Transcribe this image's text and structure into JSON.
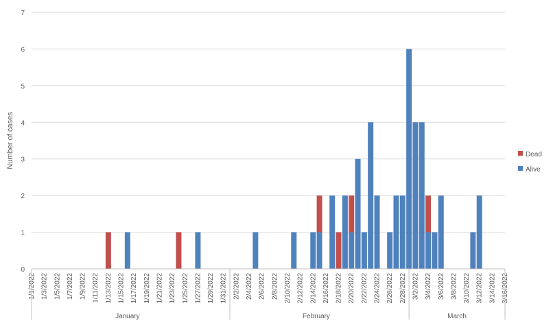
{
  "chart_data": {
    "type": "bar",
    "stacked": true,
    "ylabel": "Number of cases",
    "ylim": [
      0,
      7
    ],
    "yticks": [
      0,
      1,
      2,
      3,
      4,
      5,
      6,
      7
    ],
    "grid": true,
    "legend_position": "right",
    "dates": [
      "1/1/2022",
      "1/2/2022",
      "1/3/2022",
      "1/4/2022",
      "1/5/2022",
      "1/6/2022",
      "1/7/2022",
      "1/8/2022",
      "1/9/2022",
      "1/10/2022",
      "1/11/2022",
      "1/12/2022",
      "1/13/2022",
      "1/14/2022",
      "1/15/2022",
      "1/16/2022",
      "1/17/2022",
      "1/18/2022",
      "1/19/2022",
      "1/20/2022",
      "1/21/2022",
      "1/22/2022",
      "1/23/2022",
      "1/24/2022",
      "1/25/2022",
      "1/26/2022",
      "1/27/2022",
      "1/28/2022",
      "1/29/2022",
      "1/30/2022",
      "1/31/2022",
      "2/1/2022",
      "2/2/2022",
      "2/3/2022",
      "2/4/2022",
      "2/5/2022",
      "2/6/2022",
      "2/7/2022",
      "2/8/2022",
      "2/9/2022",
      "2/10/2022",
      "2/11/2022",
      "2/12/2022",
      "2/13/2022",
      "2/14/2022",
      "2/15/2022",
      "2/16/2022",
      "2/17/2022",
      "2/18/2022",
      "2/19/2022",
      "2/20/2022",
      "2/21/2022",
      "2/22/2022",
      "2/23/2022",
      "2/24/2022",
      "2/25/2022",
      "2/26/2022",
      "2/27/2022",
      "2/28/2022",
      "3/1/2022",
      "3/2/2022",
      "3/3/2022",
      "3/4/2022",
      "3/5/2022",
      "3/6/2022",
      "3/7/2022",
      "3/8/2022",
      "3/9/2022",
      "3/10/2022",
      "3/11/2022",
      "3/12/2022",
      "3/13/2022",
      "3/14/2022",
      "3/15/2022",
      "3/16/2022"
    ],
    "tick_labels": [
      "1/1/2022",
      "1/3/2022",
      "1/5/2022",
      "1/7/2022",
      "1/9/2022",
      "1/11/2022",
      "1/13/2022",
      "1/15/2022",
      "1/17/2022",
      "1/19/2022",
      "1/21/2022",
      "1/23/2022",
      "1/25/2022",
      "1/27/2022",
      "1/29/2022",
      "1/31/2022",
      "2/2/2022",
      "2/4/2022",
      "2/6/2022",
      "2/8/2022",
      "2/10/2022",
      "2/12/2022",
      "2/14/2022",
      "2/16/2022",
      "2/18/2022",
      "2/20/2022",
      "2/22/2022",
      "2/24/2022",
      "2/26/2022",
      "2/28/2022",
      "3/2/2022",
      "3/4/2022",
      "3/6/2022",
      "3/8/2022",
      "3/10/2022",
      "3/12/2022",
      "3/14/2022",
      "3/16/2022"
    ],
    "months": [
      {
        "name": "January",
        "first": "1/1/2022",
        "last": "1/31/2022"
      },
      {
        "name": "February",
        "first": "2/1/2022",
        "last": "2/28/2022"
      },
      {
        "name": "March",
        "first": "3/1/2022",
        "last": "3/16/2022"
      }
    ],
    "series": [
      {
        "name": "Alive",
        "color": "#4f81bd",
        "values": [
          0,
          0,
          0,
          0,
          0,
          0,
          0,
          0,
          0,
          0,
          0,
          0,
          0,
          0,
          0,
          1,
          0,
          0,
          0,
          0,
          0,
          0,
          0,
          0,
          0,
          0,
          1,
          0,
          0,
          0,
          0,
          0,
          0,
          0,
          0,
          1,
          0,
          0,
          0,
          0,
          0,
          1,
          0,
          0,
          1,
          1,
          0,
          2,
          0,
          2,
          1,
          3,
          1,
          4,
          2,
          0,
          1,
          2,
          2,
          6,
          4,
          4,
          1,
          1,
          2,
          0,
          0,
          0,
          0,
          1,
          2,
          0,
          0,
          0,
          0
        ]
      },
      {
        "name": "Dead",
        "color": "#c0504d",
        "values": [
          0,
          0,
          0,
          0,
          0,
          0,
          0,
          0,
          0,
          0,
          0,
          0,
          1,
          0,
          0,
          0,
          0,
          0,
          0,
          0,
          0,
          0,
          0,
          1,
          0,
          0,
          0,
          0,
          0,
          0,
          0,
          0,
          0,
          0,
          0,
          0,
          0,
          0,
          0,
          0,
          0,
          0,
          0,
          0,
          0,
          1,
          0,
          0,
          1,
          0,
          1,
          0,
          0,
          0,
          0,
          0,
          0,
          0,
          0,
          0,
          0,
          0,
          1,
          0,
          0,
          0,
          0,
          0,
          0,
          0,
          0,
          0,
          0,
          0,
          0
        ]
      }
    ],
    "legend": [
      "Dead",
      "Alive"
    ]
  }
}
